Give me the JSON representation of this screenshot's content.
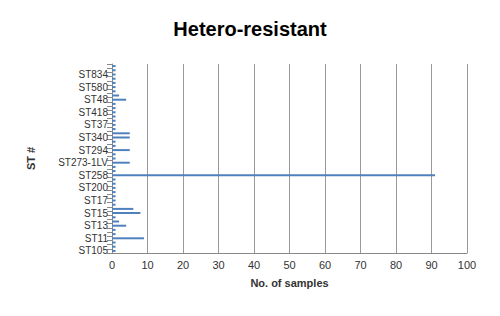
{
  "chart_data": {
    "type": "bar",
    "orientation": "horizontal",
    "title": "Hetero-resistant",
    "x_label": "No. of samples",
    "y_label": "ST #",
    "categories": [
      "ST105",
      null,
      null,
      "ST11",
      null,
      null,
      "ST13",
      null,
      null,
      "ST15",
      null,
      null,
      "ST17",
      null,
      null,
      "ST200",
      null,
      null,
      "ST258",
      null,
      null,
      "ST273-1LV",
      null,
      null,
      "ST294",
      null,
      null,
      "ST340",
      null,
      null,
      "ST37",
      null,
      null,
      "ST418",
      null,
      null,
      "ST48",
      null,
      null,
      "ST580",
      null,
      null,
      "ST834",
      null,
      null
    ],
    "values": [
      1,
      1,
      1,
      9,
      1,
      1,
      4,
      2,
      1,
      8,
      6,
      1,
      1,
      1,
      1,
      1,
      1,
      1,
      91,
      1,
      1,
      5,
      1,
      1,
      5,
      1,
      1,
      5,
      5,
      1,
      1,
      1,
      1,
      1,
      1,
      1,
      4,
      2,
      1,
      1,
      1,
      1,
      1,
      1,
      1
    ],
    "color": "#4f81bd",
    "xlim": [
      0,
      100
    ],
    "xticks": [
      0,
      10,
      20,
      30,
      40,
      50,
      60,
      70,
      80,
      90,
      100
    ],
    "grid": true
  }
}
